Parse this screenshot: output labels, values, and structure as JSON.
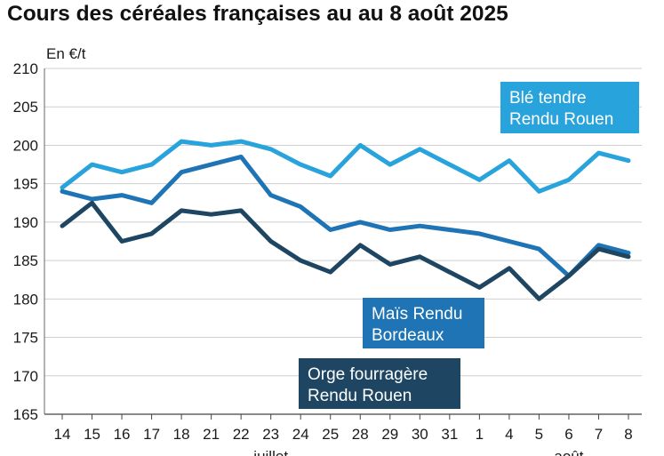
{
  "chart_data": {
    "type": "line",
    "title": "Cours des céréales françaises au au 8 août 2025",
    "ylabel": "En €/t",
    "xlabel": "",
    "ylim": [
      165,
      210
    ],
    "yticks": [
      165,
      170,
      175,
      180,
      185,
      190,
      195,
      200,
      205,
      210
    ],
    "grid": true,
    "categories": [
      "14",
      "15",
      "16",
      "17",
      "18",
      "21",
      "22",
      "23",
      "24",
      "25",
      "28",
      "29",
      "30",
      "31",
      "1",
      "4",
      "5",
      "6",
      "7",
      "8"
    ],
    "month_labels": [
      {
        "label": "juillet",
        "category": "23"
      },
      {
        "label": "août",
        "category": "6"
      }
    ],
    "series": [
      {
        "name": "Blé tendre Rendu Rouen",
        "legend_lines": [
          "Blé tendre",
          "Rendu Rouen"
        ],
        "color": "#29a3dc",
        "values": [
          194.5,
          197.5,
          196.5,
          197.5,
          200.5,
          200,
          200.5,
          199.5,
          197.5,
          196,
          200,
          197.5,
          199.5,
          197.5,
          195.5,
          198,
          194,
          195.5,
          199,
          198
        ]
      },
      {
        "name": "Maïs Rendu Bordeaux",
        "legend_lines": [
          "Maïs Rendu",
          "Bordeaux"
        ],
        "color": "#1f74b6",
        "values": [
          194,
          193,
          193.5,
          192.5,
          196.5,
          197.5,
          198.5,
          193.5,
          192,
          189,
          190,
          189,
          189.5,
          189,
          188.5,
          187.5,
          186.5,
          183,
          187,
          186
        ]
      },
      {
        "name": "Orge fourragère Rendu Rouen",
        "legend_lines": [
          "Orge fourragère",
          "Rendu Rouen"
        ],
        "color": "#1e4662",
        "values": [
          189.5,
          192.5,
          187.5,
          188.5,
          191.5,
          191,
          191.5,
          187.5,
          185,
          183.5,
          187,
          184.5,
          185.5,
          183.5,
          181.5,
          184,
          180,
          183,
          186.5,
          185.5
        ]
      }
    ]
  }
}
